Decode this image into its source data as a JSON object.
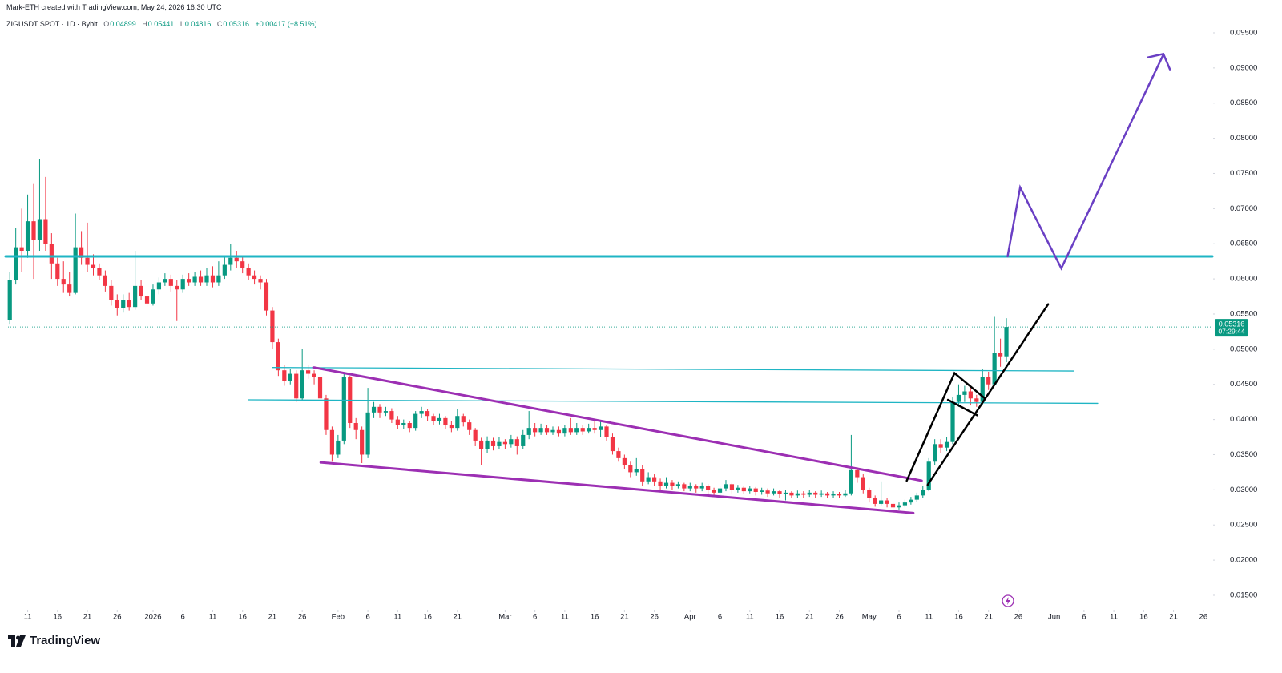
{
  "header": {
    "attribution": "Mark-ETH created with TradingView.com, May 24, 2026 16:30 UTC",
    "symbol": "ZIGUSDT SPOT · 1D · Bybit",
    "open_label": "O",
    "high_label": "H",
    "low_label": "L",
    "close_label": "C",
    "change": "+0.00417 (+8.51%)"
  },
  "chart_data": {
    "type": "candlestick",
    "xlim": [
      -0.7,
      201.5
    ],
    "xticks": [
      {
        "value": 3,
        "label": "11"
      },
      {
        "value": 8,
        "label": "16"
      },
      {
        "value": 13,
        "label": "21"
      },
      {
        "value": 18,
        "label": "26"
      },
      {
        "value": 24,
        "label": "2026"
      },
      {
        "value": 29,
        "label": "6"
      },
      {
        "value": 34,
        "label": "11"
      },
      {
        "value": 39,
        "label": "16"
      },
      {
        "value": 44,
        "label": "21"
      },
      {
        "value": 49,
        "label": "26"
      },
      {
        "value": 55,
        "label": "Feb"
      },
      {
        "value": 60,
        "label": "6"
      },
      {
        "value": 65,
        "label": "11"
      },
      {
        "value": 70,
        "label": "16"
      },
      {
        "value": 75,
        "label": "21"
      },
      {
        "value": 83,
        "label": "Mar"
      },
      {
        "value": 88,
        "label": "6"
      },
      {
        "value": 93,
        "label": "11"
      },
      {
        "value": 98,
        "label": "16"
      },
      {
        "value": 103,
        "label": "21"
      },
      {
        "value": 108,
        "label": "26"
      },
      {
        "value": 114,
        "label": "Apr"
      },
      {
        "value": 119,
        "label": "6"
      },
      {
        "value": 124,
        "label": "11"
      },
      {
        "value": 129,
        "label": "16"
      },
      {
        "value": 134,
        "label": "21"
      },
      {
        "value": 139,
        "label": "26"
      },
      {
        "value": 144,
        "label": "May"
      },
      {
        "value": 149,
        "label": "6"
      },
      {
        "value": 154,
        "label": "11"
      },
      {
        "value": 159,
        "label": "16"
      },
      {
        "value": 164,
        "label": "21"
      },
      {
        "value": 169,
        "label": "26"
      },
      {
        "value": 175,
        "label": "Jun"
      },
      {
        "value": 180,
        "label": "6"
      },
      {
        "value": 185,
        "label": "11"
      },
      {
        "value": 190,
        "label": "16"
      },
      {
        "value": 195,
        "label": "21"
      },
      {
        "value": 200,
        "label": "26"
      }
    ],
    "ylim": [
      0.01306,
      0.09967
    ],
    "yticks": [
      {
        "value": 0.015,
        "label": "0.01500"
      },
      {
        "value": 0.02,
        "label": "0.02000"
      },
      {
        "value": 0.025,
        "label": "0.02500"
      },
      {
        "value": 0.03,
        "label": "0.03000"
      },
      {
        "value": 0.035,
        "label": "0.03500"
      },
      {
        "value": 0.04,
        "label": "0.04000"
      },
      {
        "value": 0.045,
        "label": "0.04500"
      },
      {
        "value": 0.05,
        "label": "0.05000"
      },
      {
        "value": 0.055,
        "label": "0.05500"
      },
      {
        "value": 0.06,
        "label": "0.06000"
      },
      {
        "value": 0.065,
        "label": "0.06500"
      },
      {
        "value": 0.07,
        "label": "0.07000"
      },
      {
        "value": 0.075,
        "label": "0.07500"
      },
      {
        "value": 0.08,
        "label": "0.08000"
      },
      {
        "value": 0.085,
        "label": "0.08500"
      },
      {
        "value": 0.09,
        "label": "0.09000"
      },
      {
        "value": 0.095,
        "label": "0.09500"
      }
    ],
    "grid": false,
    "up_color": "#089981",
    "down_color": "#f23645",
    "open": [
      0.0541,
      0.0598,
      0.0645,
      0.064,
      0.0682,
      0.0655,
      0.0685,
      0.065,
      0.0622,
      0.06,
      0.0592,
      0.058,
      0.0645,
      0.063,
      0.062,
      0.0615,
      0.0605,
      0.059,
      0.057,
      0.0558,
      0.057,
      0.056,
      0.059,
      0.0575,
      0.0565,
      0.0585,
      0.0595,
      0.06,
      0.059,
      0.0585,
      0.06,
      0.0595,
      0.0603,
      0.0595,
      0.0605,
      0.0595,
      0.0605,
      0.062,
      0.063,
      0.0625,
      0.0615,
      0.0605,
      0.06,
      0.0595,
      0.0555,
      0.051,
      0.047,
      0.0455,
      0.0465,
      0.043,
      0.047,
      0.0465,
      0.046,
      0.043,
      0.0385,
      0.035,
      0.037,
      0.046,
      0.0395,
      0.0385,
      0.035,
      0.041,
      0.0418,
      0.041,
      0.0412,
      0.04,
      0.0392,
      0.0395,
      0.0388,
      0.0408,
      0.0412,
      0.0405,
      0.0398,
      0.0402,
      0.0392,
      0.0388,
      0.0405,
      0.0396,
      0.0385,
      0.037,
      0.0358,
      0.037,
      0.0362,
      0.0368,
      0.0365,
      0.0372,
      0.0362,
      0.0378,
      0.0388,
      0.0382,
      0.0388,
      0.0382,
      0.0385,
      0.038,
      0.0388,
      0.0382,
      0.0388,
      0.0383,
      0.0388,
      0.0385,
      0.039,
      0.0375,
      0.0355,
      0.0345,
      0.0335,
      0.0325,
      0.033,
      0.0312,
      0.0318,
      0.0312,
      0.0305,
      0.031,
      0.0305,
      0.0308,
      0.0302,
      0.0305,
      0.0302,
      0.0306,
      0.03,
      0.0296,
      0.0302,
      0.0308,
      0.03,
      0.0303,
      0.0298,
      0.0302,
      0.0297,
      0.0299,
      0.0295,
      0.0298,
      0.0294,
      0.0296,
      0.0292,
      0.0295,
      0.0293,
      0.0296,
      0.0293,
      0.0295,
      0.0292,
      0.0294,
      0.0292,
      0.0295,
      0.0328,
      0.0318,
      0.03,
      0.0288,
      0.028,
      0.0285,
      0.028,
      0.0275,
      0.0278,
      0.0282,
      0.0286,
      0.0292,
      0.03,
      0.034,
      0.0365,
      0.036,
      0.0368,
      0.0425,
      0.0435,
      0.044,
      0.043,
      0.0425,
      0.046,
      0.045,
      0.0495,
      0.04899
    ],
    "high": [
      0.061,
      0.0672,
      0.07,
      0.072,
      0.0735,
      0.077,
      0.0745,
      0.0665,
      0.063,
      0.0625,
      0.061,
      0.0693,
      0.0668,
      0.068,
      0.0635,
      0.0622,
      0.0612,
      0.0598,
      0.0578,
      0.0578,
      0.058,
      0.064,
      0.0598,
      0.0582,
      0.0592,
      0.0602,
      0.0608,
      0.0606,
      0.0598,
      0.0606,
      0.0608,
      0.061,
      0.0612,
      0.0615,
      0.0618,
      0.0625,
      0.0632,
      0.065,
      0.064,
      0.0632,
      0.0622,
      0.0612,
      0.0605,
      0.06,
      0.056,
      0.0515,
      0.0478,
      0.0472,
      0.047,
      0.05,
      0.0478,
      0.047,
      0.0465,
      0.0435,
      0.039,
      0.0378,
      0.0465,
      0.0462,
      0.0402,
      0.039,
      0.0445,
      0.0425,
      0.0422,
      0.0418,
      0.0416,
      0.0405,
      0.04,
      0.0398,
      0.0412,
      0.0418,
      0.0415,
      0.0408,
      0.0408,
      0.0405,
      0.0398,
      0.0415,
      0.0408,
      0.04,
      0.0388,
      0.0374,
      0.0376,
      0.0374,
      0.0375,
      0.0372,
      0.0378,
      0.0376,
      0.0385,
      0.0412,
      0.0395,
      0.0394,
      0.0392,
      0.039,
      0.039,
      0.0392,
      0.0402,
      0.0395,
      0.0392,
      0.0394,
      0.04,
      0.0398,
      0.0392,
      0.038,
      0.036,
      0.035,
      0.034,
      0.0345,
      0.0335,
      0.0325,
      0.0322,
      0.0316,
      0.0318,
      0.0314,
      0.0312,
      0.031,
      0.031,
      0.0308,
      0.031,
      0.0308,
      0.0303,
      0.0306,
      0.0314,
      0.031,
      0.0307,
      0.0305,
      0.0306,
      0.0304,
      0.0303,
      0.0302,
      0.0302,
      0.03,
      0.03,
      0.0298,
      0.0299,
      0.0298,
      0.03,
      0.0298,
      0.0299,
      0.0297,
      0.0298,
      0.0297,
      0.03,
      0.0378,
      0.0332,
      0.0322,
      0.0303,
      0.0292,
      0.0312,
      0.0288,
      0.0283,
      0.0282,
      0.0286,
      0.029,
      0.0296,
      0.0306,
      0.0345,
      0.0372,
      0.0372,
      0.0375,
      0.0432,
      0.045,
      0.0448,
      0.0445,
      0.0435,
      0.0472,
      0.0468,
      0.0546,
      0.0515,
      0.05441
    ],
    "low": [
      0.0535,
      0.0592,
      0.061,
      0.063,
      0.06,
      0.064,
      0.064,
      0.06,
      0.059,
      0.058,
      0.0575,
      0.0578,
      0.062,
      0.061,
      0.0605,
      0.0598,
      0.0582,
      0.0562,
      0.0548,
      0.0552,
      0.0555,
      0.0556,
      0.057,
      0.056,
      0.0562,
      0.0578,
      0.059,
      0.0582,
      0.054,
      0.058,
      0.059,
      0.059,
      0.059,
      0.059,
      0.0588,
      0.059,
      0.06,
      0.0612,
      0.0615,
      0.0608,
      0.0598,
      0.0592,
      0.0585,
      0.0548,
      0.05,
      0.0462,
      0.0448,
      0.045,
      0.0425,
      0.0428,
      0.0458,
      0.045,
      0.0422,
      0.0378,
      0.034,
      0.0345,
      0.0365,
      0.0388,
      0.0372,
      0.0338,
      0.0345,
      0.0402,
      0.0402,
      0.0405,
      0.0395,
      0.0386,
      0.0386,
      0.0382,
      0.0384,
      0.0402,
      0.0398,
      0.0392,
      0.0393,
      0.0386,
      0.0382,
      0.0384,
      0.039,
      0.0378,
      0.0362,
      0.0335,
      0.0352,
      0.0356,
      0.0358,
      0.0358,
      0.036,
      0.035,
      0.0358,
      0.0372,
      0.0376,
      0.0378,
      0.0378,
      0.0378,
      0.0376,
      0.0376,
      0.0378,
      0.0378,
      0.0378,
      0.038,
      0.038,
      0.0375,
      0.037,
      0.035,
      0.034,
      0.033,
      0.0318,
      0.032,
      0.0305,
      0.0308,
      0.0305,
      0.03,
      0.0302,
      0.03,
      0.0302,
      0.0298,
      0.0298,
      0.0296,
      0.0298,
      0.0294,
      0.029,
      0.0292,
      0.0298,
      0.0295,
      0.0296,
      0.0294,
      0.0295,
      0.0292,
      0.0293,
      0.029,
      0.0292,
      0.0288,
      0.0285,
      0.0288,
      0.0289,
      0.0288,
      0.029,
      0.0289,
      0.029,
      0.0288,
      0.0289,
      0.0288,
      0.029,
      0.0292,
      0.031,
      0.0295,
      0.0282,
      0.0276,
      0.0278,
      0.0275,
      0.027,
      0.0272,
      0.0275,
      0.0279,
      0.0283,
      0.0288,
      0.0298,
      0.0335,
      0.0352,
      0.0355,
      0.0365,
      0.0418,
      0.0425,
      0.042,
      0.0418,
      0.042,
      0.0442,
      0.0448,
      0.0475,
      0.04816
    ],
    "close": [
      0.0598,
      0.0645,
      0.064,
      0.0682,
      0.0655,
      0.0685,
      0.065,
      0.0622,
      0.06,
      0.0592,
      0.058,
      0.0645,
      0.063,
      0.062,
      0.0615,
      0.0605,
      0.059,
      0.057,
      0.0558,
      0.057,
      0.056,
      0.059,
      0.0575,
      0.0565,
      0.0585,
      0.0595,
      0.06,
      0.059,
      0.0585,
      0.06,
      0.0595,
      0.0603,
      0.0595,
      0.0605,
      0.0595,
      0.0605,
      0.062,
      0.063,
      0.0625,
      0.0615,
      0.0605,
      0.06,
      0.0595,
      0.0555,
      0.051,
      0.047,
      0.0455,
      0.0465,
      0.043,
      0.047,
      0.0465,
      0.046,
      0.043,
      0.0385,
      0.035,
      0.037,
      0.046,
      0.0395,
      0.0385,
      0.035,
      0.041,
      0.0418,
      0.041,
      0.0412,
      0.04,
      0.0392,
      0.0395,
      0.0388,
      0.0408,
      0.0412,
      0.0405,
      0.0398,
      0.0402,
      0.0392,
      0.0388,
      0.0405,
      0.0396,
      0.0385,
      0.037,
      0.0358,
      0.037,
      0.0362,
      0.0368,
      0.0365,
      0.0372,
      0.0362,
      0.0378,
      0.0388,
      0.0382,
      0.0388,
      0.0382,
      0.0385,
      0.038,
      0.0388,
      0.0382,
      0.0388,
      0.0383,
      0.0388,
      0.0385,
      0.039,
      0.0375,
      0.0355,
      0.0345,
      0.0335,
      0.0325,
      0.033,
      0.0312,
      0.0318,
      0.0312,
      0.0305,
      0.031,
      0.0305,
      0.0308,
      0.0302,
      0.0305,
      0.0302,
      0.0306,
      0.03,
      0.0296,
      0.0302,
      0.0308,
      0.03,
      0.0303,
      0.0298,
      0.0302,
      0.0297,
      0.0299,
      0.0295,
      0.0298,
      0.0294,
      0.0296,
      0.0292,
      0.0295,
      0.0293,
      0.0296,
      0.0293,
      0.0295,
      0.0292,
      0.0294,
      0.0292,
      0.0295,
      0.0328,
      0.0318,
      0.03,
      0.0288,
      0.028,
      0.0285,
      0.028,
      0.0275,
      0.0278,
      0.0282,
      0.0286,
      0.0292,
      0.03,
      0.034,
      0.0365,
      0.036,
      0.0368,
      0.0425,
      0.0435,
      0.044,
      0.043,
      0.0425,
      0.046,
      0.045,
      0.0495,
      0.04899,
      0.05316
    ],
    "countdown": "07:29:44",
    "drawings": [
      {
        "color": "#1fb5c4",
        "x": [
          -0.7,
          201.5
        ],
        "y": [
          0.0632,
          0.0632
        ]
      },
      {
        "color": "#1fb5c4",
        "x": [
          44.0,
          178.3
        ],
        "y": [
          0.0474,
          0.0469
        ]
      },
      {
        "color": "#1fb5c4",
        "x": [
          40.0,
          182.3
        ],
        "y": [
          0.0428,
          0.0423
        ]
      },
      {
        "color": "#9c2fb3",
        "x": [
          51.0,
          152.8
        ],
        "y": [
          0.0474,
          0.0313
        ]
      },
      {
        "color": "#9c2fb3",
        "x": [
          52.1,
          151.4
        ],
        "y": [
          0.0339,
          0.0267
        ]
      },
      {
        "color": "#000000",
        "x": [
          150.3,
          158.3,
          163.4
        ],
        "y": [
          0.0313,
          0.0466,
          0.043
        ]
      },
      {
        "color": "#000000",
        "x": [
          157.2,
          162.1
        ],
        "y": [
          0.0428,
          0.0406
        ]
      },
      {
        "color": "#000000",
        "x": [
          153.8,
          174.0
        ],
        "y": [
          0.0307,
          0.0564
        ]
      },
      {
        "color": "#6a3fc4",
        "x": [
          167.2,
          169.3,
          176.2,
          193.3
        ],
        "y": [
          0.0632,
          0.073,
          0.0615,
          0.0919
        ]
      },
      {
        "color": "#6a3fc4",
        "x": [
          190.7,
          193.3,
          194.4
        ],
        "y": [
          0.0915,
          0.092,
          0.0898
        ]
      }
    ]
  },
  "footer": {
    "brand": "TradingView"
  }
}
